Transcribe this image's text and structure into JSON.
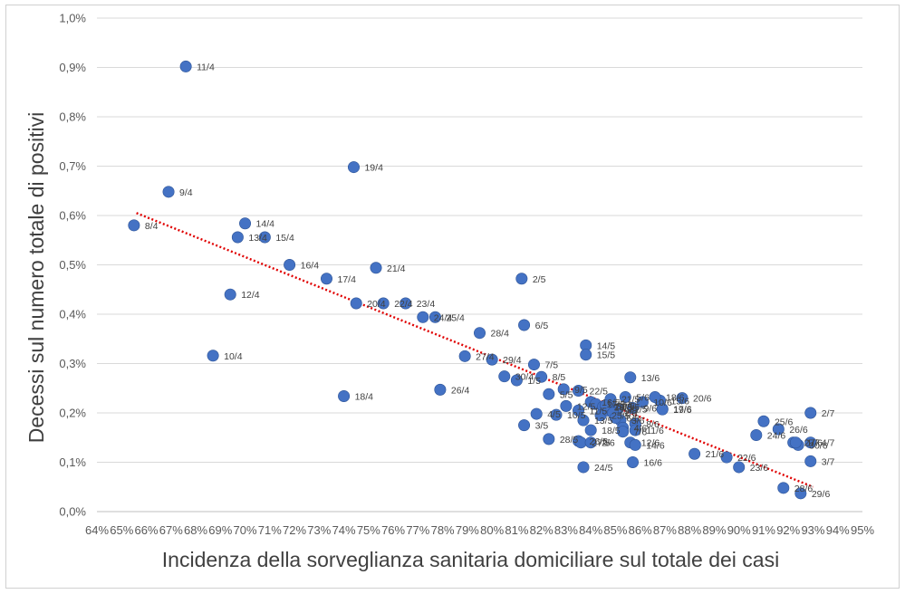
{
  "chart_data": {
    "type": "scatter",
    "xlabel": "Incidenza della sorveglianza sanitaria domiciliare sul totale dei casi",
    "ylabel": "Decessi sul numero totale di positivi",
    "xlim": [
      64,
      95
    ],
    "ylim": [
      0,
      1.0
    ],
    "x_unit": "%",
    "y_unit": "%",
    "x_ticks": [
      "64%",
      "65%",
      "66%",
      "67%",
      "68%",
      "69%",
      "70%",
      "71%",
      "72%",
      "73%",
      "74%",
      "75%",
      "76%",
      "77%",
      "78%",
      "79%",
      "80%",
      "81%",
      "82%",
      "83%",
      "84%",
      "85%",
      "86%",
      "87%",
      "88%",
      "89%",
      "90%",
      "91%",
      "92%",
      "93%",
      "94%",
      "95%"
    ],
    "y_ticks": [
      "0,0%",
      "0,1%",
      "0,2%",
      "0,3%",
      "0,4%",
      "0,5%",
      "0,6%",
      "0,7%",
      "0,8%",
      "0,9%",
      "1,0%"
    ],
    "grid": "horizontal",
    "trendline": {
      "type": "linear",
      "x": [
        65.6,
        93.0
      ],
      "y": [
        0.605,
        0.05
      ],
      "color": "#e00000",
      "style": "dotted"
    },
    "marker_color": "#4472c4",
    "points": [
      {
        "label": "8/4",
        "x": 65.5,
        "y": 0.58
      },
      {
        "label": "9/4",
        "x": 66.9,
        "y": 0.648
      },
      {
        "label": "11/4",
        "x": 67.6,
        "y": 0.902
      },
      {
        "label": "10/4",
        "x": 68.7,
        "y": 0.316
      },
      {
        "label": "12/4",
        "x": 69.4,
        "y": 0.44
      },
      {
        "label": "13/4",
        "x": 69.7,
        "y": 0.556
      },
      {
        "label": "14/4",
        "x": 70.0,
        "y": 0.584
      },
      {
        "label": "15/4",
        "x": 70.8,
        "y": 0.556
      },
      {
        "label": "16/4",
        "x": 71.8,
        "y": 0.5
      },
      {
        "label": "17/4",
        "x": 73.3,
        "y": 0.472
      },
      {
        "label": "18/4",
        "x": 74.0,
        "y": 0.234
      },
      {
        "label": "19/4",
        "x": 74.4,
        "y": 0.698
      },
      {
        "label": "20/4",
        "x": 74.5,
        "y": 0.422
      },
      {
        "label": "21/4",
        "x": 75.3,
        "y": 0.494
      },
      {
        "label": "22/4",
        "x": 75.6,
        "y": 0.422
      },
      {
        "label": "23/4",
        "x": 76.5,
        "y": 0.422
      },
      {
        "label": "24/4",
        "x": 77.2,
        "y": 0.394
      },
      {
        "label": "25/4",
        "x": 77.7,
        "y": 0.394
      },
      {
        "label": "26/4",
        "x": 77.9,
        "y": 0.247
      },
      {
        "label": "27/4",
        "x": 78.9,
        "y": 0.315
      },
      {
        "label": "28/4",
        "x": 79.5,
        "y": 0.362
      },
      {
        "label": "29/4",
        "x": 80.0,
        "y": 0.308
      },
      {
        "label": "30/4",
        "x": 80.5,
        "y": 0.274
      },
      {
        "label": "1/5",
        "x": 81.0,
        "y": 0.266
      },
      {
        "label": "2/5",
        "x": 81.2,
        "y": 0.472
      },
      {
        "label": "3/5",
        "x": 81.3,
        "y": 0.175
      },
      {
        "label": "4/5",
        "x": 81.8,
        "y": 0.198
      },
      {
        "label": "5/5",
        "x": 82.3,
        "y": 0.238
      },
      {
        "label": "6/5",
        "x": 81.3,
        "y": 0.378
      },
      {
        "label": "7/5",
        "x": 81.7,
        "y": 0.298
      },
      {
        "label": "8/5",
        "x": 82.0,
        "y": 0.273
      },
      {
        "label": "9/5",
        "x": 82.9,
        "y": 0.248
      },
      {
        "label": "10/5",
        "x": 82.6,
        "y": 0.196
      },
      {
        "label": "11/5",
        "x": 83.5,
        "y": 0.205
      },
      {
        "label": "12/5",
        "x": 83.0,
        "y": 0.214
      },
      {
        "label": "13/5",
        "x": 83.7,
        "y": 0.185
      },
      {
        "label": "14/5",
        "x": 83.8,
        "y": 0.337
      },
      {
        "label": "15/5",
        "x": 83.8,
        "y": 0.318
      },
      {
        "label": "16/5",
        "x": 84.0,
        "y": 0.222
      },
      {
        "label": "17/5",
        "x": 84.2,
        "y": 0.218
      },
      {
        "label": "18/5",
        "x": 84.0,
        "y": 0.165
      },
      {
        "label": "19/5",
        "x": 84.5,
        "y": 0.212
      },
      {
        "label": "20/5",
        "x": 84.5,
        "y": 0.213
      },
      {
        "label": "21/5",
        "x": 84.8,
        "y": 0.228
      },
      {
        "label": "22/5",
        "x": 83.5,
        "y": 0.245
      },
      {
        "label": "23/5",
        "x": 84.8,
        "y": 0.213
      },
      {
        "label": "24/5",
        "x": 83.7,
        "y": 0.09
      },
      {
        "label": "25/5",
        "x": 84.4,
        "y": 0.195
      },
      {
        "label": "26/5",
        "x": 83.5,
        "y": 0.143
      },
      {
        "label": "27/5",
        "x": 83.6,
        "y": 0.14
      },
      {
        "label": "28/5",
        "x": 82.3,
        "y": 0.147
      },
      {
        "label": "29/5",
        "x": 84.7,
        "y": 0.205
      },
      {
        "label": "30/5",
        "x": 84.6,
        "y": 0.215
      },
      {
        "label": "31/5",
        "x": 85.1,
        "y": 0.208
      },
      {
        "label": "1/6",
        "x": 84.9,
        "y": 0.2
      },
      {
        "label": "2/6",
        "x": 84.0,
        "y": 0.14
      },
      {
        "label": "3/6",
        "x": 85.2,
        "y": 0.185
      },
      {
        "label": "4/6",
        "x": 85.3,
        "y": 0.17
      },
      {
        "label": "5/6",
        "x": 85.4,
        "y": 0.232
      },
      {
        "label": "6/6",
        "x": 85.0,
        "y": 0.19
      },
      {
        "label": "7/6",
        "x": 85.3,
        "y": 0.162
      },
      {
        "label": "8/6",
        "x": 85.8,
        "y": 0.178
      },
      {
        "label": "9/6",
        "x": 85.7,
        "y": 0.21
      },
      {
        "label": "10/6",
        "x": 86.1,
        "y": 0.222
      },
      {
        "label": "11/6",
        "x": 85.8,
        "y": 0.165
      },
      {
        "label": "12/6",
        "x": 85.6,
        "y": 0.14
      },
      {
        "label": "13/6",
        "x": 85.6,
        "y": 0.272
      },
      {
        "label": "14/6",
        "x": 85.8,
        "y": 0.135
      },
      {
        "label": "15/6",
        "x": 86.8,
        "y": 0.225
      },
      {
        "label": "16/6",
        "x": 85.7,
        "y": 0.1
      },
      {
        "label": "17/6",
        "x": 86.9,
        "y": 0.208
      },
      {
        "label": "18/6",
        "x": 86.6,
        "y": 0.232
      },
      {
        "label": "19/6",
        "x": 86.9,
        "y": 0.207
      },
      {
        "label": "20/6",
        "x": 87.7,
        "y": 0.23
      },
      {
        "label": "21/6",
        "x": 88.2,
        "y": 0.117
      },
      {
        "label": "22/6",
        "x": 89.5,
        "y": 0.11
      },
      {
        "label": "23/6",
        "x": 90.0,
        "y": 0.09
      },
      {
        "label": "24/6",
        "x": 90.7,
        "y": 0.155
      },
      {
        "label": "25/6",
        "x": 91.0,
        "y": 0.183
      },
      {
        "label": "26/6",
        "x": 91.6,
        "y": 0.167
      },
      {
        "label": "27/6",
        "x": 92.2,
        "y": 0.14
      },
      {
        "label": "28/6",
        "x": 91.8,
        "y": 0.048
      },
      {
        "label": "29/6",
        "x": 92.5,
        "y": 0.037
      },
      {
        "label": "30/6",
        "x": 92.4,
        "y": 0.135
      },
      {
        "label": "1/7",
        "x": 92.3,
        "y": 0.14
      },
      {
        "label": "2/7",
        "x": 92.9,
        "y": 0.2
      },
      {
        "label": "3/7",
        "x": 92.9,
        "y": 0.102
      },
      {
        "label": "4/7",
        "x": 92.9,
        "y": 0.14
      }
    ]
  }
}
